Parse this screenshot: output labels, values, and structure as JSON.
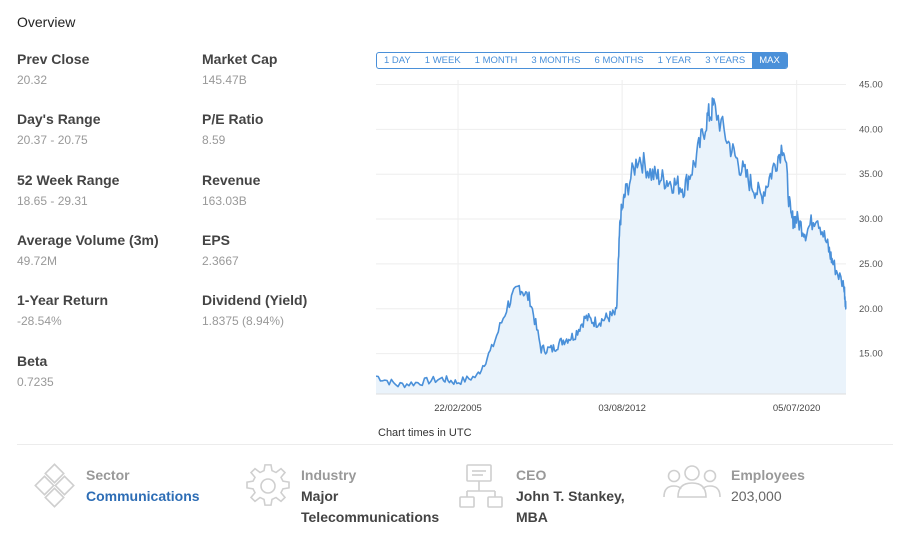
{
  "overview": {
    "title": "Overview",
    "stats": [
      {
        "label": "Prev Close",
        "value": "20.32"
      },
      {
        "label": "Market Cap",
        "value": "145.47B"
      },
      {
        "label": "Day's Range",
        "value": "20.37 - 20.75"
      },
      {
        "label": "P/E Ratio",
        "value": "8.59"
      },
      {
        "label": "52 Week Range",
        "value": "18.65 - 29.31"
      },
      {
        "label": "Revenue",
        "value": "163.03B"
      },
      {
        "label": "Average Volume (3m)",
        "value": "49.72M"
      },
      {
        "label": "EPS",
        "value": "2.3667"
      },
      {
        "label": "1-Year Return",
        "value": "-28.54%"
      },
      {
        "label": "Dividend (Yield)",
        "value": "1.8375 (8.94%)"
      },
      {
        "label": "Beta",
        "value": "0.7235"
      }
    ]
  },
  "range_buttons": [
    "1 DAY",
    "1 WEEK",
    "1 MONTH",
    "3 MONTHS",
    "6 MONTHS",
    "1 YEAR",
    "3 YEARS",
    "MAX"
  ],
  "active_range": "MAX",
  "chart_note": "Chart times in UTC",
  "colors": {
    "accent": "#4a90d9",
    "area_fill": "#eaf3fb",
    "link": "#2d6db5",
    "muted": "#999999"
  },
  "chart_data": {
    "type": "area",
    "x_tick_labels": [
      "22/02/2005",
      "03/08/2012",
      "05/07/2020"
    ],
    "y_tick_labels": [
      "45.00",
      "40.00",
      "35.00",
      "30.00",
      "25.00",
      "20.00",
      "15.00"
    ],
    "ylim": [
      10.5,
      45.5
    ],
    "y_axis_position": "right",
    "grid": true,
    "x": [
      "2001-06",
      "2002-06",
      "2003-06",
      "2004-06",
      "2005-02",
      "2006-01",
      "2006-09",
      "2007-06",
      "2007-12",
      "2008-06",
      "2008-12",
      "2009-06",
      "2009-12",
      "2010-06",
      "2010-12",
      "2011-06",
      "2011-12",
      "2012-05",
      "2012-07",
      "2012-10",
      "2013-05",
      "2013-12",
      "2014-06",
      "2014-12",
      "2015-06",
      "2015-12",
      "2016-06",
      "2016-10",
      "2017-06",
      "2017-12",
      "2018-06",
      "2018-12",
      "2019-06",
      "2019-12",
      "2020-04",
      "2020-07",
      "2020-12",
      "2021-06",
      "2021-12",
      "2022-03",
      "2022-09",
      "2022-10"
    ],
    "values": [
      12.5,
      11.5,
      11.8,
      12.2,
      11.8,
      12.5,
      15.5,
      20.5,
      22.5,
      21.0,
      15.5,
      15.5,
      16.5,
      17.0,
      19.0,
      18.5,
      19.0,
      19.5,
      30.0,
      33.0,
      37.0,
      35.0,
      34.5,
      34.0,
      33.5,
      36.5,
      41.0,
      42.5,
      38.5,
      36.0,
      34.0,
      32.5,
      35.5,
      38.5,
      30.0,
      30.0,
      28.5,
      30.5,
      27.0,
      25.0,
      22.5,
      20.0
    ]
  },
  "info": [
    {
      "icon": "sector-icon",
      "label": "Sector",
      "value": "Communications",
      "value2": ""
    },
    {
      "icon": "industry-gear-icon",
      "label": "Industry",
      "value": "Major",
      "value2": "Telecommunications"
    },
    {
      "icon": "ceo-org-chart-icon",
      "label": "CEO",
      "value": "John T. Stankey,",
      "value2": "MBA"
    },
    {
      "icon": "employees-icon",
      "label": "Employees",
      "value": "203,000",
      "value2": ""
    }
  ]
}
